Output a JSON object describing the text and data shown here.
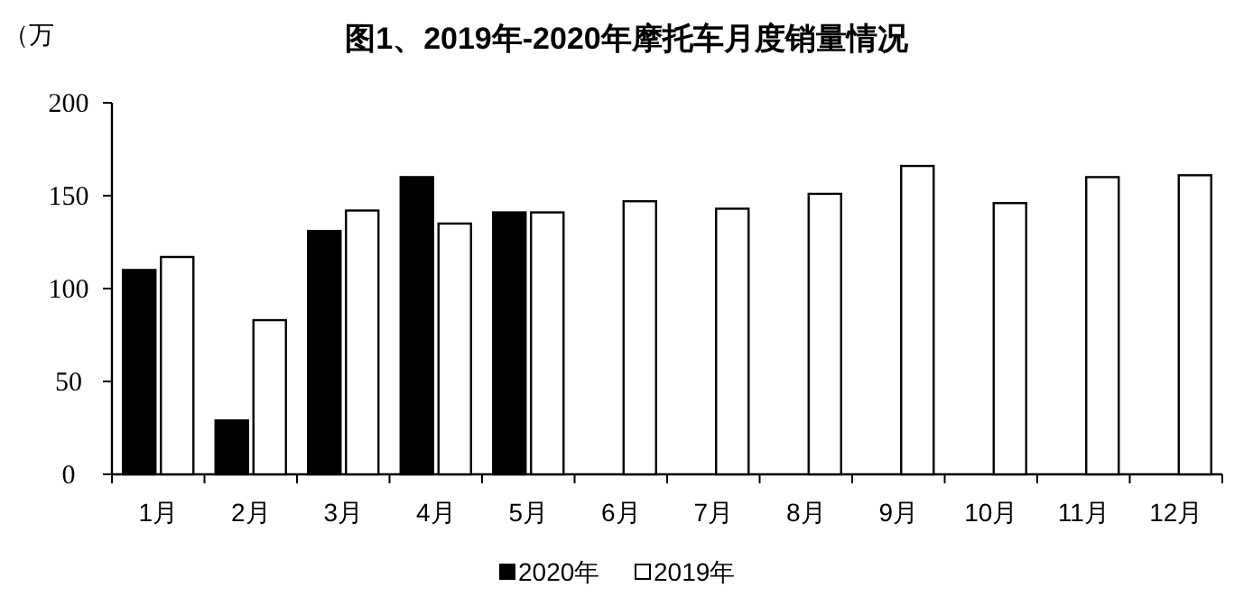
{
  "chart_data": {
    "type": "bar",
    "title": "图1、2019年-2020年摩托车月度销量情况",
    "ylabel": "（万",
    "categories": [
      "1月",
      "2月",
      "3月",
      "4月",
      "5月",
      "6月",
      "7月",
      "8月",
      "9月",
      "10月",
      "11月",
      "12月"
    ],
    "series": [
      {
        "name": "2020年",
        "color": "#000000",
        "values": [
          110,
          29,
          131,
          160,
          141,
          null,
          null,
          null,
          null,
          null,
          null,
          null
        ]
      },
      {
        "name": "2019年",
        "color": "#ffffff",
        "values": [
          117,
          83,
          142,
          135,
          141,
          147,
          143,
          151,
          166,
          146,
          160,
          161
        ]
      }
    ],
    "ylim": [
      0,
      200
    ],
    "yticks": [
      0,
      50,
      100,
      150,
      200
    ],
    "grid": false,
    "legend": "bottom"
  }
}
